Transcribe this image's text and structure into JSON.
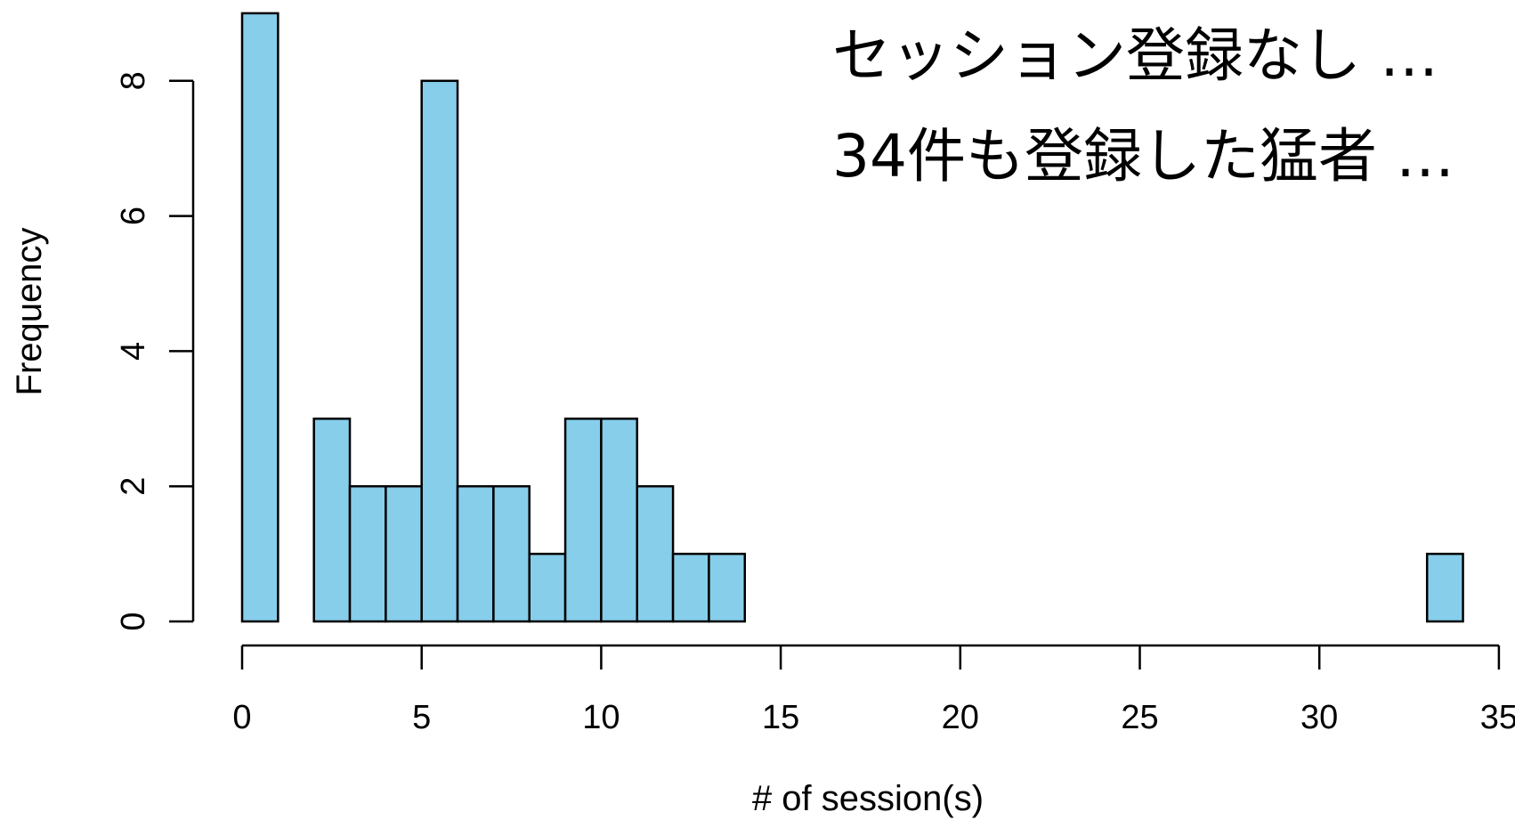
{
  "chart_data": {
    "type": "bar",
    "subtype": "histogram",
    "bin_edges": [
      0,
      1,
      2,
      3,
      4,
      5,
      6,
      7,
      8,
      9,
      10,
      11,
      12,
      13,
      14,
      15,
      16,
      17,
      18,
      19,
      20,
      21,
      22,
      23,
      24,
      25,
      26,
      27,
      28,
      29,
      30,
      31,
      32,
      33,
      34
    ],
    "values": [
      9,
      0,
      3,
      2,
      2,
      8,
      2,
      2,
      1,
      3,
      3,
      2,
      1,
      1,
      0,
      0,
      0,
      0,
      0,
      0,
      0,
      0,
      0,
      0,
      0,
      0,
      0,
      0,
      0,
      0,
      0,
      0,
      0,
      1
    ],
    "xlabel": "# of session(s)",
    "ylabel": "Frequency",
    "xlim": [
      0,
      35
    ],
    "ylim": [
      0,
      9
    ],
    "x_ticks": [
      "0",
      "5",
      "10",
      "15",
      "20",
      "25",
      "30",
      "35"
    ],
    "y_ticks": [
      "0",
      "2",
      "4",
      "6",
      "8"
    ],
    "grid": false,
    "bar_color": "#87CEEB",
    "edge_color": "#000000",
    "annotations": [
      "セッション登録なし …",
      "34件も登録した猛者 …"
    ]
  }
}
